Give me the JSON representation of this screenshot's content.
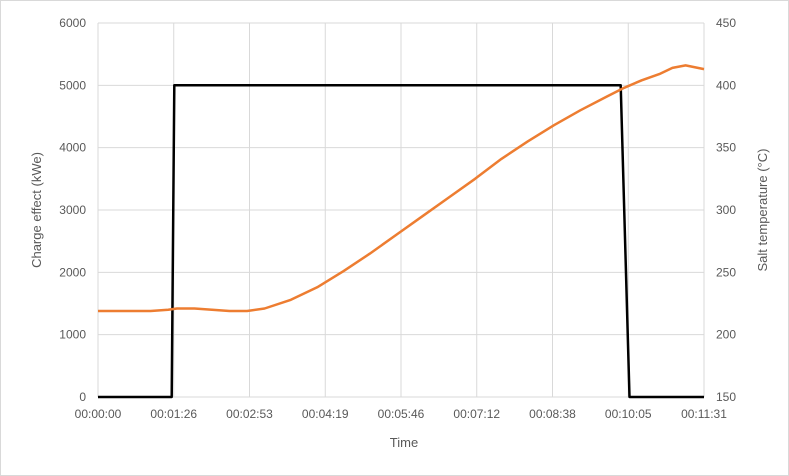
{
  "chart_data": {
    "type": "line",
    "xlabel": "Time",
    "ylabel": "Charge effect (kWe)",
    "y2label": "Salt temperature (°C)",
    "x_ticks": [
      "00:00:00",
      "00:01:26",
      "00:02:53",
      "00:04:19",
      "00:05:46",
      "00:07:12",
      "00:08:38",
      "00:10:05",
      "00:11:31"
    ],
    "x_range_seconds": [
      0,
      691
    ],
    "ylim": [
      0,
      6000
    ],
    "y_ticks": [
      0,
      1000,
      2000,
      3000,
      4000,
      5000,
      6000
    ],
    "y2lim": [
      150,
      450
    ],
    "y2_ticks": [
      150,
      200,
      250,
      300,
      350,
      400,
      450
    ],
    "grid": true,
    "legend": "none",
    "series": [
      {
        "axis": "left",
        "color": "#000000",
        "x_seconds": [
          0,
          60,
          84,
          87,
          150,
          250,
          350,
          450,
          530,
          596,
          606,
          691
        ],
        "values": [
          0,
          0,
          0,
          5000,
          5000,
          5000,
          5000,
          5000,
          5000,
          5000,
          0,
          0
        ]
      },
      {
        "axis": "right",
        "color": "#ed7d31",
        "x_seconds": [
          0,
          30,
          60,
          80,
          90,
          110,
          130,
          150,
          170,
          190,
          220,
          250,
          280,
          310,
          340,
          370,
          400,
          430,
          460,
          490,
          520,
          550,
          580,
          600,
          620,
          640,
          655,
          670,
          691
        ],
        "values": [
          219,
          219,
          219,
          220,
          221,
          221,
          220,
          219,
          219,
          221,
          228,
          238,
          251,
          265,
          280,
          295,
          310,
          325,
          341,
          355,
          368,
          380,
          391,
          398,
          404,
          409,
          414,
          416,
          413
        ]
      }
    ]
  }
}
